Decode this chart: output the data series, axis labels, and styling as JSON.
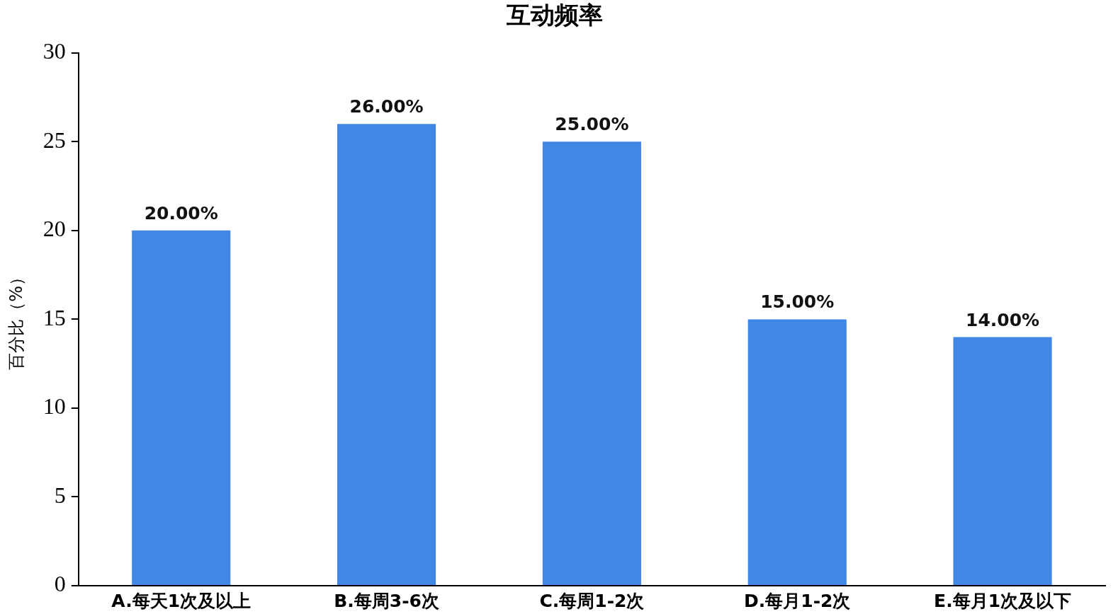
{
  "chart_data": {
    "type": "bar",
    "title": "互动频率",
    "ylabel": "百分比（%）",
    "categories": [
      "A.每天1次及以上",
      "B.每周3-6次",
      "C.每周1-2次",
      "D.每月1-2次",
      "E.每月1次及以下"
    ],
    "values": [
      20,
      26,
      25,
      15,
      14
    ],
    "value_labels": [
      "20.00%",
      "26.00%",
      "25.00%",
      "15.00%",
      "14.00%"
    ],
    "color": "#4287e3",
    "ylim": [
      0,
      30
    ],
    "yticks": [
      0,
      5,
      10,
      15,
      20,
      25,
      30
    ],
    "grid": false,
    "legend": false
  }
}
